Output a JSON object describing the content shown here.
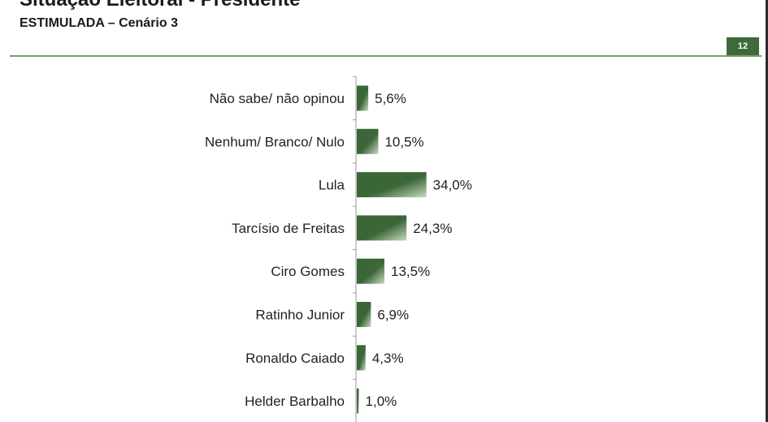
{
  "header": {
    "title": "Situação Eleitoral - Presidente",
    "subtitle": "ESTIMULADA – Cenário 3",
    "page_number": "12"
  },
  "colors": {
    "bar_dark": "#3a6638",
    "bar_light": "#c6d9c0",
    "accent": "#3e6b3c"
  },
  "chart_data": {
    "type": "bar",
    "orientation": "horizontal",
    "categories": [
      "Não sabe/ não opinou",
      "Nenhum/ Branco/ Nulo",
      "Lula",
      "Tarcísio de Freitas",
      "Ciro Gomes",
      "Ratinho Junior",
      "Ronaldo Caiado",
      "Helder Barbalho"
    ],
    "values": [
      5.6,
      10.5,
      34.0,
      24.3,
      13.5,
      6.9,
      4.3,
      1.0
    ],
    "value_labels": [
      "5,6%",
      "10,5%",
      "34,0%",
      "24,3%",
      "13,5%",
      "6,9%",
      "4,3%",
      "1,0%"
    ],
    "title": "",
    "xlabel": "",
    "ylabel": "",
    "xlim": [
      0,
      100
    ]
  }
}
